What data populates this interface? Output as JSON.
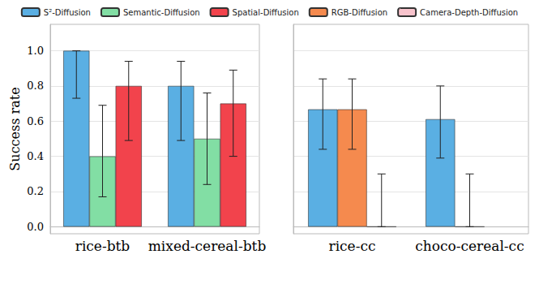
{
  "chart_data": [
    {
      "type": "bar",
      "ylabel": "Success rate",
      "categories": [
        "rice-btb",
        "mixed-cereal-btb"
      ],
      "series": [
        {
          "name": "S²-Diffusion",
          "color": "#5aafe3",
          "values": [
            1.0,
            0.8
          ],
          "errors": [
            [
              0.73,
              1.0
            ],
            [
              0.49,
              0.94
            ]
          ]
        },
        {
          "name": "Semantic-Diffusion",
          "color": "#82dea4",
          "values": [
            0.4,
            0.5
          ],
          "errors": [
            [
              0.17,
              0.69
            ],
            [
              0.24,
              0.76
            ]
          ]
        },
        {
          "name": "Spatial-Diffusion",
          "color": "#f2434c",
          "values": [
            0.8,
            0.7
          ],
          "errors": [
            [
              0.49,
              0.94
            ],
            [
              0.4,
              0.89
            ]
          ]
        }
      ],
      "ylim": [
        -0.04,
        1.15
      ],
      "yticks": [
        {
          "value": 0,
          "label": "0.0"
        },
        {
          "value": 0.2,
          "label": "0.2"
        },
        {
          "value": 0.4,
          "label": "0.4"
        },
        {
          "value": 0.6,
          "label": "0.6"
        },
        {
          "value": 0.8,
          "label": "0.8"
        },
        {
          "value": 1,
          "label": "1.0"
        }
      ],
      "grid": true,
      "legend": "top"
    },
    {
      "type": "bar",
      "categories": [
        "rice-cc",
        "choco-cereal-cc"
      ],
      "series": [
        {
          "name": "S²-Diffusion",
          "color": "#5aafe3",
          "values": [
            0.667,
            0.611
          ],
          "errors": [
            [
              0.44,
              0.84
            ],
            [
              0.39,
              0.8
            ]
          ]
        },
        {
          "name": "RGB-Diffusion",
          "color": "#f58a4e",
          "values": [
            0.667,
            0.0
          ],
          "errors": [
            [
              0.44,
              0.84
            ],
            [
              0.0,
              0.3
            ]
          ]
        },
        {
          "name": "Camera-Depth-Diffusion",
          "color": "#f8c3cc",
          "values": [
            0.0,
            null
          ],
          "errors": [
            [
              0.0,
              0.3
            ],
            null
          ]
        }
      ],
      "ylim": [
        -0.04,
        1.15
      ],
      "yticks": [
        {
          "value": 0,
          "label": "0.0"
        },
        {
          "value": 0.2,
          "label": "0.2"
        },
        {
          "value": 0.4,
          "label": "0.4"
        },
        {
          "value": 0.6,
          "label": "0.6"
        },
        {
          "value": 0.8,
          "label": "0.8"
        },
        {
          "value": 1,
          "label": "1.0"
        }
      ],
      "grid": true,
      "tick_labels": "x",
      "legend": "top"
    }
  ]
}
